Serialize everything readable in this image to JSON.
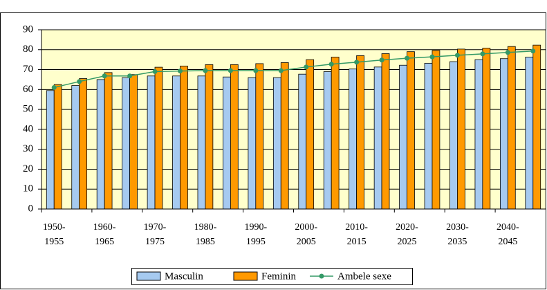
{
  "chart_data": {
    "type": "bar",
    "categories": [
      "1950-\n1955",
      null,
      "1960-\n1965",
      null,
      "1970-\n1975",
      null,
      "1980-\n1985",
      null,
      "1990-\n1995",
      null,
      "2000-\n2005",
      null,
      "2010-\n2015",
      null,
      "2020-\n2025",
      null,
      "2030-\n2035",
      null,
      "2040-\n2045",
      null
    ],
    "series": [
      {
        "name": "Masculin",
        "color": "#a6caf0",
        "values": [
          59.5,
          62,
          65,
          66,
          66.8,
          66.8,
          66.8,
          66.3,
          66,
          66,
          67.7,
          69,
          70.3,
          71.3,
          72.2,
          73.2,
          74,
          75,
          75.5,
          76.3
        ]
      },
      {
        "name": "Feminin",
        "color": "#ff9900",
        "values": [
          62.5,
          65.5,
          68.5,
          67.5,
          71.2,
          71.8,
          72.5,
          72.5,
          73,
          73.5,
          75,
          76.3,
          77,
          78,
          79,
          79.6,
          80.3,
          80.8,
          81.6,
          82.3
        ]
      },
      {
        "name": "Ambele sexe",
        "type": "line",
        "color": "#339966",
        "values": [
          61,
          64,
          66.8,
          66.8,
          69,
          69.3,
          69.5,
          69.5,
          69.5,
          69.5,
          71.3,
          72.7,
          73.7,
          74.8,
          75.7,
          76.4,
          77.2,
          77.9,
          78.6,
          79.3
        ]
      }
    ],
    "ylim": [
      0,
      90
    ],
    "yticks": [
      0,
      10,
      20,
      30,
      40,
      50,
      60,
      70,
      80,
      90
    ],
    "grid": true,
    "legend": "bottom"
  }
}
